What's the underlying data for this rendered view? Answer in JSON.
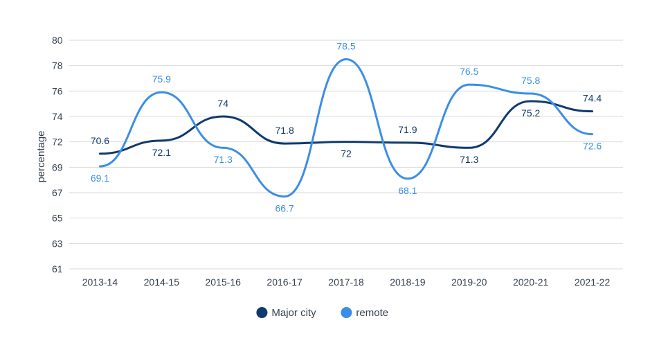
{
  "chart_data": {
    "type": "line",
    "title": "",
    "xlabel": "",
    "ylabel": "percentage",
    "categories": [
      "2013-14",
      "2014-15",
      "2015-16",
      "2016-17",
      "2017-18",
      "2018-19",
      "2019-20",
      "2020-21",
      "2021-22"
    ],
    "y_tick_labels": [
      "61",
      "63",
      "65",
      "67",
      "69",
      "72",
      "74",
      "76",
      "78",
      "80"
    ],
    "grid": true,
    "legend_position": "bottom",
    "series": [
      {
        "name": "Major city",
        "color": "#0f3a6e",
        "values": [
          70.6,
          72.1,
          74,
          71.8,
          72,
          71.9,
          71.3,
          75.2,
          74.4
        ],
        "labels": [
          "70.6",
          "72.1",
          "74",
          "71.8",
          "72",
          "71.9",
          "71.3",
          "75.2",
          "74.4"
        ]
      },
      {
        "name": "remote",
        "color": "#3b8ee6",
        "values": [
          69.1,
          75.9,
          71.3,
          66.7,
          78.5,
          68.1,
          76.5,
          75.8,
          72.6
        ],
        "labels": [
          "69.1",
          "75.9",
          "71.3",
          "66.7",
          "78.5",
          "68.1",
          "76.5",
          "75.8",
          "72.6"
        ]
      }
    ]
  }
}
